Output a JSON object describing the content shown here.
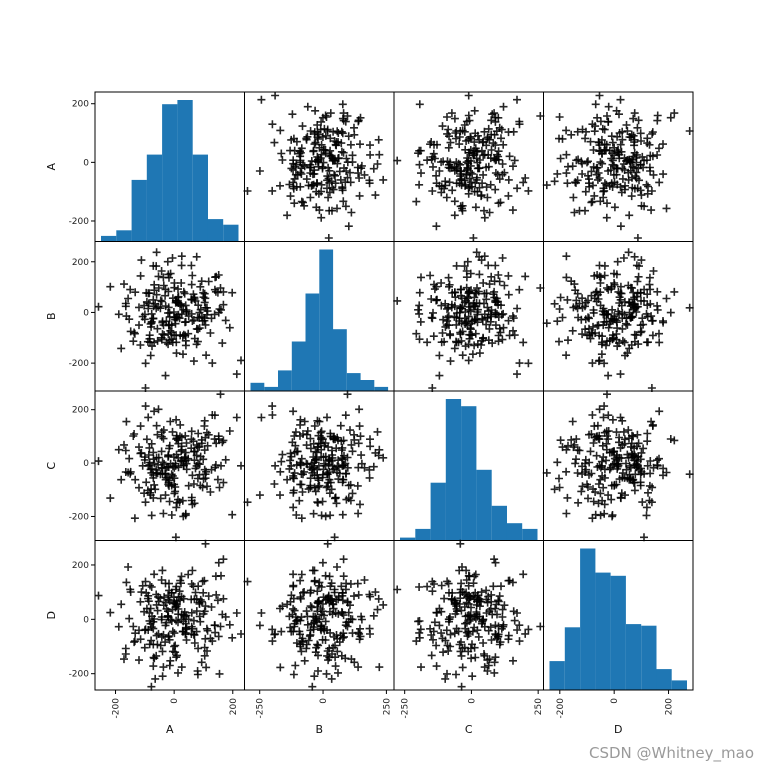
{
  "watermark": "CSDN @Whitney_mao",
  "colors": {
    "bar": "#1f77b4",
    "marker": "#000000",
    "frame": "#000000"
  },
  "chart_data": {
    "type": "scatter-matrix",
    "variables": [
      "A",
      "B",
      "C",
      "D"
    ],
    "marker": "+",
    "diagonal": "hist",
    "ranges": {
      "A": [
        -270,
        240
      ],
      "B": [
        -310,
        280
      ],
      "C": [
        -290,
        270
      ],
      "D": [
        -260,
        290
      ]
    },
    "ticks": {
      "A": [
        -200,
        0,
        200
      ],
      "B": [
        -250,
        0,
        250
      ],
      "C": [
        -250,
        0,
        250
      ],
      "D": [
        -200,
        0,
        200
      ]
    },
    "ytick_labels_by_row": {
      "A": [
        -200,
        0,
        200
      ],
      "B": [
        -200,
        0,
        200
      ],
      "C": [
        -200,
        0,
        200
      ],
      "D": [
        -200,
        0,
        200
      ]
    },
    "histograms": {
      "A": [
        4,
        8,
        44,
        62,
        98,
        101,
        62,
        16,
        12
      ],
      "B": [
        6,
        3,
        15,
        36,
        71,
        103,
        45,
        13,
        8,
        3
      ],
      "C": [
        2,
        8,
        40,
        98,
        93,
        49,
        24,
        12,
        8
      ],
      "D": [
        18,
        39,
        88,
        73,
        71,
        41,
        40,
        13,
        6
      ]
    },
    "sample_points": [
      {
        "A": -150,
        "B": 90,
        "C": -40,
        "D": 110
      },
      {
        "A": -120,
        "B": 20,
        "C": 60,
        "D": -150
      },
      {
        "A": -80,
        "B": -170,
        "C": -120,
        "D": 40
      },
      {
        "A": -60,
        "B": 70,
        "C": 140,
        "D": -60
      },
      {
        "A": -40,
        "B": -40,
        "C": -20,
        "D": 180
      },
      {
        "A": -20,
        "B": 150,
        "C": 30,
        "D": 10
      },
      {
        "A": 0,
        "B": -90,
        "C": -80,
        "D": -100
      },
      {
        "A": 20,
        "B": 30,
        "C": 100,
        "D": 70
      },
      {
        "A": 40,
        "B": -130,
        "C": 10,
        "D": -30
      },
      {
        "A": 60,
        "B": 110,
        "C": -140,
        "D": 130
      },
      {
        "A": 80,
        "B": -20,
        "C": 60,
        "D": -190
      },
      {
        "A": 100,
        "B": 60,
        "C": -60,
        "D": 20
      },
      {
        "A": 130,
        "B": -200,
        "C": 180,
        "D": -80
      },
      {
        "A": 160,
        "B": 10,
        "C": -10,
        "D": 160
      },
      {
        "A": 190,
        "B": -60,
        "C": 120,
        "D": -20
      }
    ]
  }
}
